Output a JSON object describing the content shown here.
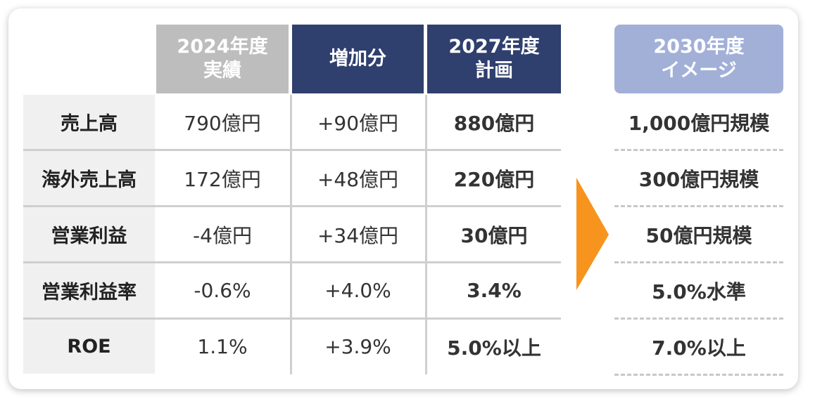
{
  "columns": [
    {
      "lines": [
        "2024年度",
        "実績"
      ]
    },
    {
      "lines": [
        "増加分"
      ]
    },
    {
      "lines": [
        "2027年度",
        "計画"
      ]
    },
    {
      "lines": [
        "2030年度",
        "イメージ"
      ]
    }
  ],
  "rows": [
    {
      "label": "売上高",
      "cells": [
        "790億円",
        "+90億円",
        "880億円",
        "1,000億円規模"
      ]
    },
    {
      "label": "海外売上高",
      "cells": [
        "172億円",
        "+48億円",
        "220億円",
        "300億円規模"
      ]
    },
    {
      "label": "営業利益",
      "cells": [
        "-4億円",
        "+34億円",
        "30億円",
        "50億円規模"
      ]
    },
    {
      "label": "営業利益率",
      "cells": [
        "-0.6%",
        "+4.0%",
        "3.4%",
        "5.0%水準"
      ]
    },
    {
      "label": "ROE",
      "cells": [
        "1.1%",
        "+3.9%",
        "5.0%以上",
        "7.0%以上"
      ]
    }
  ]
}
